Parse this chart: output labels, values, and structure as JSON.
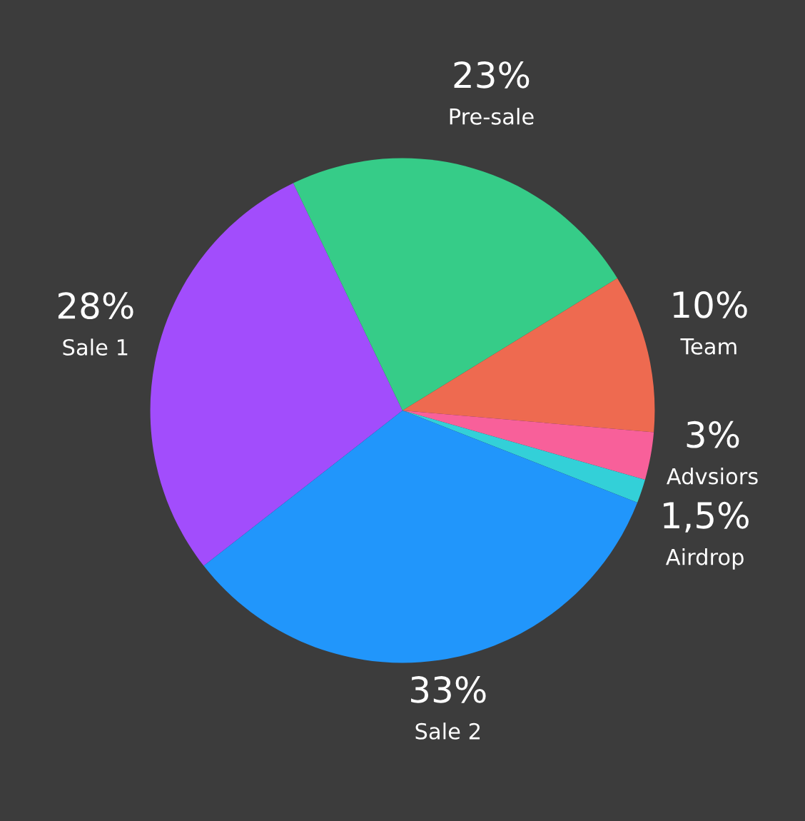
{
  "chart_data": {
    "type": "pie",
    "categories": [
      "Sale 1",
      "Pre-sale",
      "Team",
      "Advsiors",
      "Airdrop",
      "Sale 2"
    ],
    "values": [
      28,
      23,
      10,
      3,
      1.5,
      33
    ],
    "value_labels": [
      "28%",
      "23%",
      "10%",
      "3%",
      "1,5%",
      "33%"
    ],
    "colors": [
      "#a24dfc",
      "#36cc88",
      "#ee6a50",
      "#f8609a",
      "#33d0d8",
      "#2196fb"
    ],
    "legend": false
  }
}
